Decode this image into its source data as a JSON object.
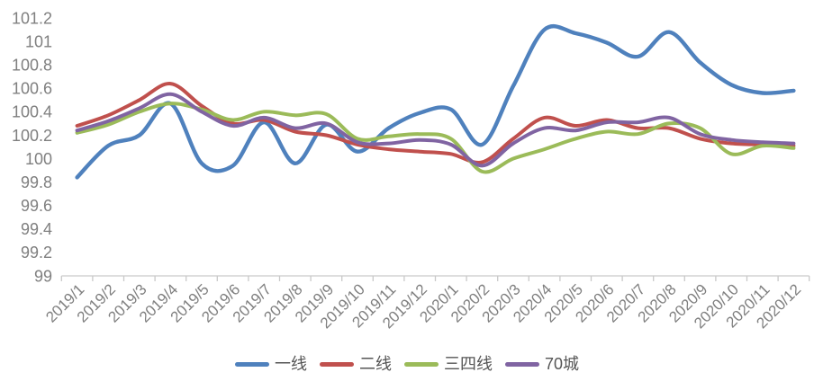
{
  "chart_data": {
    "type": "line",
    "title": "",
    "xlabel": "",
    "ylabel": "",
    "grid": false,
    "legend_position": "bottom",
    "smooth_lines": true,
    "x_categories": [
      "2019/1",
      "2019/2",
      "2019/3",
      "2019/4",
      "2019/5",
      "2019/6",
      "2019/7",
      "2019/8",
      "2019/9",
      "2019/10",
      "2019/11",
      "2019/12",
      "2020/1",
      "2020/2",
      "2020/3",
      "2020/4",
      "2020/5",
      "2020/6",
      "2020/7",
      "2020/8",
      "2020/9",
      "2020/10",
      "2020/11",
      "2020/12"
    ],
    "y_axis": {
      "min": 99,
      "max": 101.2,
      "step": 0.2,
      "tick_labels": [
        "99",
        "99.2",
        "99.4",
        "99.6",
        "99.8",
        "100",
        "100.2",
        "100.4",
        "100.6",
        "100.8",
        "101",
        "101.2"
      ]
    },
    "series": [
      {
        "name": "一线",
        "color": "#4F81BD",
        "values": [
          99.84,
          100.11,
          100.2,
          100.47,
          99.96,
          99.94,
          100.31,
          99.96,
          100.29,
          100.06,
          100.26,
          100.39,
          100.42,
          100.12,
          100.62,
          101.1,
          101.07,
          100.99,
          100.87,
          101.08,
          100.82,
          100.63,
          100.56,
          100.58
        ]
      },
      {
        "name": "二线",
        "color": "#C0504D",
        "values": [
          100.28,
          100.37,
          100.5,
          100.64,
          100.45,
          100.3,
          100.33,
          100.23,
          100.2,
          100.12,
          100.08,
          100.06,
          100.04,
          99.97,
          100.17,
          100.35,
          100.28,
          100.33,
          100.26,
          100.26,
          100.17,
          100.13,
          100.12,
          100.11
        ]
      },
      {
        "name": "三四线",
        "color": "#9BBB59",
        "values": [
          100.22,
          100.29,
          100.4,
          100.47,
          100.42,
          100.33,
          100.4,
          100.37,
          100.38,
          100.17,
          100.19,
          100.21,
          100.17,
          99.89,
          100.0,
          100.08,
          100.17,
          100.23,
          100.21,
          100.3,
          100.26,
          100.04,
          100.11,
          100.09
        ]
      },
      {
        "name": "70城",
        "color": "#8064A2",
        "values": [
          100.24,
          100.32,
          100.43,
          100.55,
          100.4,
          100.28,
          100.35,
          100.26,
          100.3,
          100.14,
          100.13,
          100.16,
          100.12,
          99.94,
          100.13,
          100.26,
          100.24,
          100.31,
          100.31,
          100.35,
          100.21,
          100.16,
          100.14,
          100.13
        ]
      }
    ]
  },
  "colors": {
    "background": "#FFFFFF",
    "axis_line": "#C9C9C9",
    "tick_mark": "#C9C9C9",
    "axis_text": "#7F7F7F",
    "legend_text": "#555555"
  }
}
